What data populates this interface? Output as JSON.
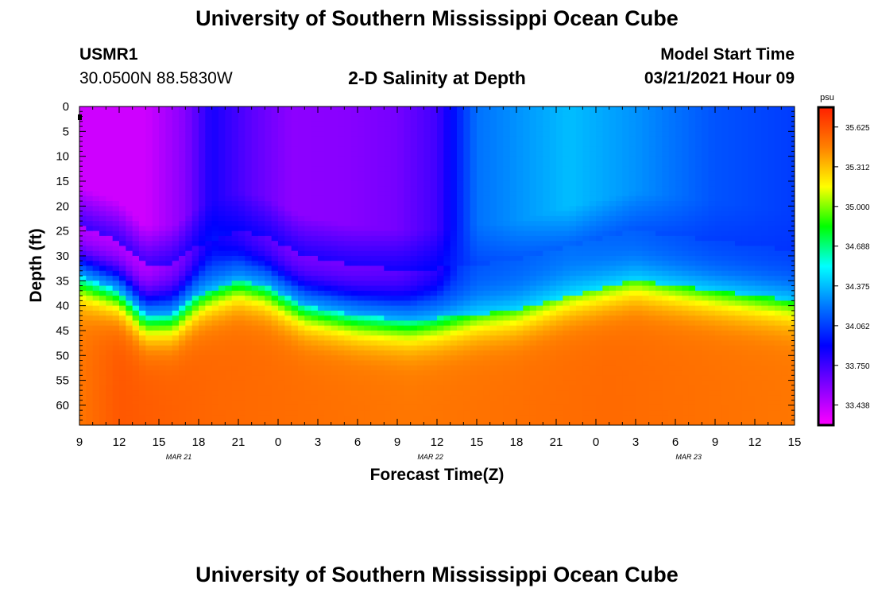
{
  "header": {
    "top_title": "University of Southern Mississippi Ocean Cube",
    "bottom_title": "University of Southern Mississippi Ocean Cube",
    "station_id": "USMR1",
    "station_coords": "30.0500N 88.5830W",
    "plot_title": "2-D Salinity at Depth",
    "model_label": "Model Start Time",
    "model_time": "03/21/2021 Hour 09"
  },
  "chart_data": {
    "type": "heatmap",
    "title": "2-D Salinity at Depth",
    "xlabel": "Forecast Time(Z)",
    "ylabel": "Depth (ft)",
    "x_range_hours": [
      0,
      54
    ],
    "x_tick_labels": [
      "9",
      "12",
      "15",
      "18",
      "21",
      "0",
      "3",
      "6",
      "9",
      "12",
      "15",
      "18",
      "21",
      "0",
      "3",
      "6",
      "9",
      "12",
      "15"
    ],
    "date_labels": [
      {
        "hour": 7.5,
        "label": "MAR 21"
      },
      {
        "hour": 26.5,
        "label": "MAR 22"
      },
      {
        "hour": 46,
        "label": "MAR 23"
      }
    ],
    "y_range_ft": [
      0,
      64
    ],
    "y_tick_labels": [
      0,
      5,
      10,
      15,
      20,
      25,
      30,
      35,
      40,
      45,
      50,
      55,
      60
    ],
    "colorbar": {
      "unit": "psu",
      "min": 33.28,
      "max": 35.78,
      "labels": [
        "35.625",
        "35.312",
        "35.000",
        "34.688",
        "34.375",
        "34.062",
        "33.750",
        "33.438"
      ],
      "colors": [
        "#ff00ff",
        "#8000ff",
        "#0000ff",
        "#0078ff",
        "#00ffff",
        "#00ff00",
        "#ffff00",
        "#ff8000",
        "#ff2000"
      ]
    },
    "halocline_depth_ft": [
      {
        "hour": 0,
        "depth": 34
      },
      {
        "hour": 3,
        "depth": 37
      },
      {
        "hour": 5,
        "depth": 42
      },
      {
        "hour": 7,
        "depth": 42
      },
      {
        "hour": 9,
        "depth": 38
      },
      {
        "hour": 12,
        "depth": 35
      },
      {
        "hour": 14,
        "depth": 36
      },
      {
        "hour": 17,
        "depth": 40
      },
      {
        "hour": 21,
        "depth": 42
      },
      {
        "hour": 25,
        "depth": 43
      },
      {
        "hour": 29,
        "depth": 42
      },
      {
        "hour": 33,
        "depth": 41
      },
      {
        "hour": 37,
        "depth": 38
      },
      {
        "hour": 42,
        "depth": 35
      },
      {
        "hour": 48,
        "depth": 37
      },
      {
        "hour": 54,
        "depth": 39
      }
    ],
    "surface_salinity_psu": [
      {
        "hour": 0,
        "value": 33.4
      },
      {
        "hour": 5,
        "value": 33.4
      },
      {
        "hour": 8,
        "value": 33.58
      },
      {
        "hour": 10,
        "value": 33.85
      },
      {
        "hour": 13,
        "value": 33.68
      },
      {
        "hour": 16,
        "value": 33.56
      },
      {
        "hour": 20,
        "value": 33.57
      },
      {
        "hour": 24,
        "value": 33.62
      },
      {
        "hour": 27,
        "value": 33.75
      },
      {
        "hour": 30,
        "value": 34.2
      },
      {
        "hour": 37,
        "value": 34.38
      },
      {
        "hour": 42,
        "value": 34.28
      },
      {
        "hour": 48,
        "value": 34.12
      },
      {
        "hour": 54,
        "value": 34.06
      }
    ],
    "bottom_salinity_psu": [
      {
        "hour": 0,
        "value": 35.5
      },
      {
        "hour": 3,
        "value": 35.6
      },
      {
        "hour": 10,
        "value": 35.55
      },
      {
        "hour": 25,
        "value": 35.5
      },
      {
        "hour": 40,
        "value": 35.54
      },
      {
        "hour": 54,
        "value": 35.5
      }
    ]
  }
}
